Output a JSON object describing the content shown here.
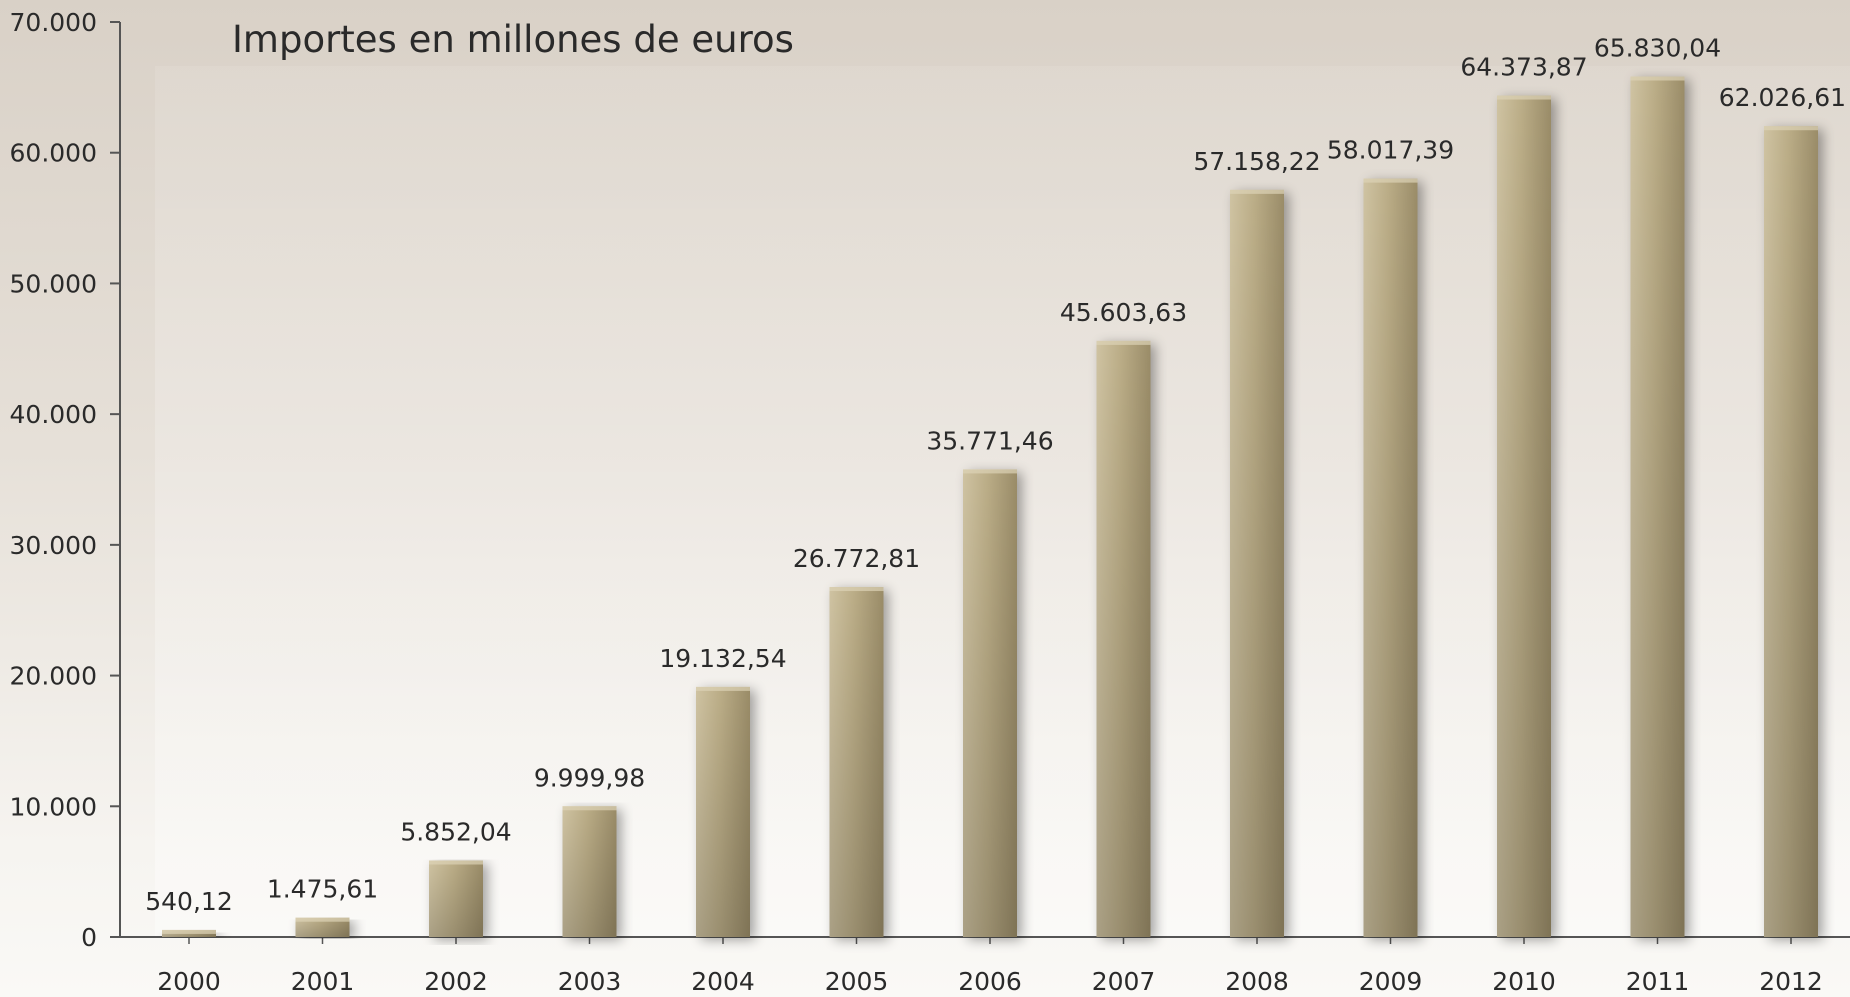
{
  "chart_data": {
    "type": "bar",
    "title": "Importes en millones de euros",
    "categories": [
      "2000",
      "2001",
      "2002",
      "2003",
      "2004",
      "2005",
      "2006",
      "2007",
      "2008",
      "2009",
      "2010",
      "2011",
      "2012"
    ],
    "values": [
      540.12,
      1475.61,
      5852.04,
      9999.98,
      19132.54,
      26772.81,
      35771.46,
      45603.63,
      57158.22,
      58017.39,
      64373.87,
      65830.04,
      62026.61
    ],
    "value_labels": [
      "540,12",
      "1.475,61",
      "5.852,04",
      "9.999,98",
      "19.132,54",
      "26.772,81",
      "35.771,46",
      "45.603,63",
      "57.158,22",
      "58.017,39",
      "64.373,87",
      "65.830,04",
      "62.026,61"
    ],
    "y_ticks": [
      0,
      10000,
      20000,
      30000,
      40000,
      50000,
      60000,
      70000
    ],
    "y_tick_labels": [
      "0",
      "10.000",
      "20.000",
      "30.000",
      "40.000",
      "50.000",
      "60.000",
      "70.000"
    ],
    "ylim": [
      0,
      70000
    ],
    "xlabel": "",
    "ylabel": "",
    "grid": false,
    "legend": "none",
    "colors": {
      "bar_light": "#cfc3a2",
      "bar_mid": "#bbad87",
      "bar_dark": "#9a8c68",
      "axis": "#555555",
      "text": "#2a2a2a"
    }
  }
}
